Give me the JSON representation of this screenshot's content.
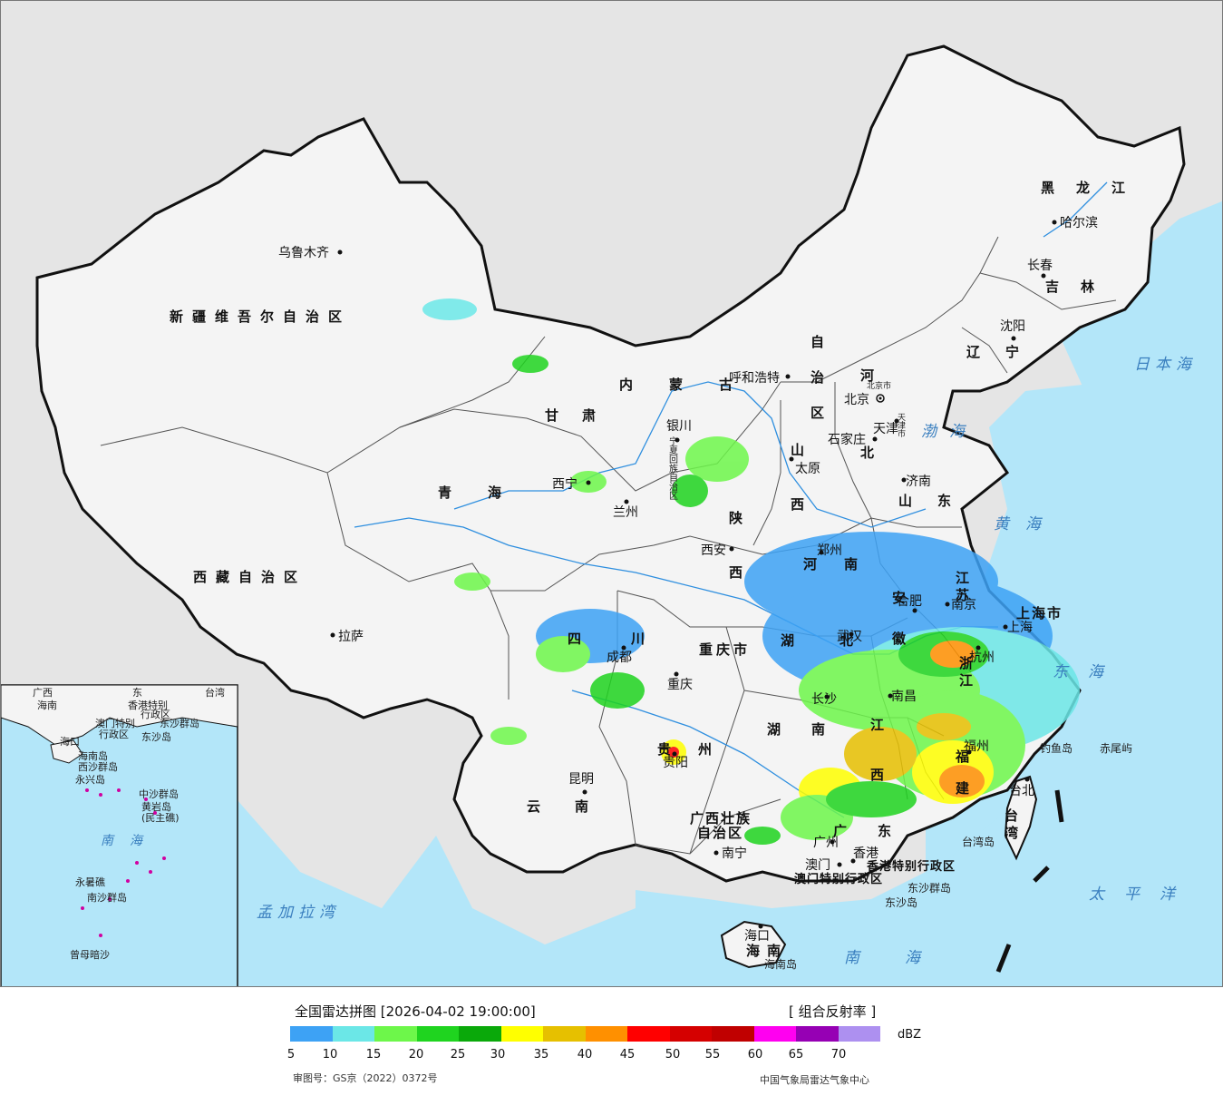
{
  "map": {
    "cities": [
      {
        "name": "乌鲁木齐"
      },
      {
        "name": "拉萨"
      },
      {
        "name": "西宁"
      },
      {
        "name": "兰州"
      },
      {
        "name": "银川"
      },
      {
        "name": "呼和浩特"
      },
      {
        "name": "北京"
      },
      {
        "name": "天津"
      },
      {
        "name": "石家庄"
      },
      {
        "name": "太原"
      },
      {
        "name": "济南"
      },
      {
        "name": "西安"
      },
      {
        "name": "郑州"
      },
      {
        "name": "成都"
      },
      {
        "name": "重庆"
      },
      {
        "name": "贵阳"
      },
      {
        "name": "昆明"
      },
      {
        "name": "南宁"
      },
      {
        "name": "广州"
      },
      {
        "name": "澳门"
      },
      {
        "name": "香港"
      },
      {
        "name": "海口"
      },
      {
        "name": "合肥"
      },
      {
        "name": "南京"
      },
      {
        "name": "上海"
      },
      {
        "name": "杭州"
      },
      {
        "name": "福州"
      },
      {
        "name": "南昌"
      },
      {
        "name": "长沙"
      },
      {
        "name": "武汉"
      },
      {
        "name": "台北"
      },
      {
        "name": "沈阳"
      },
      {
        "name": "长春"
      },
      {
        "name": "哈尔滨"
      }
    ],
    "provinces": [
      {
        "name": "新疆维吾尔自治区"
      },
      {
        "name": "西藏自治区"
      },
      {
        "name": "青海"
      },
      {
        "name": "甘肃"
      },
      {
        "name": "内蒙古"
      },
      {
        "name": "自治区"
      },
      {
        "name": "黑龙江"
      },
      {
        "name": "吉林"
      },
      {
        "name": "辽宁"
      },
      {
        "name": "河北"
      },
      {
        "name": "山西"
      },
      {
        "name": "山东"
      },
      {
        "name": "陕西"
      },
      {
        "name": "河南"
      },
      {
        "name": "四川"
      },
      {
        "name": "重庆市"
      },
      {
        "name": "贵州"
      },
      {
        "name": "云南"
      },
      {
        "name": "广西壮族"
      },
      {
        "name": "自治区"
      },
      {
        "name": "广东"
      },
      {
        "name": "湖南"
      },
      {
        "name": "湖北"
      },
      {
        "name": "江西"
      },
      {
        "name": "安徽"
      },
      {
        "name": "江苏"
      },
      {
        "name": "浙江"
      },
      {
        "name": "福建"
      },
      {
        "name": "上海市"
      },
      {
        "name": "台湾"
      },
      {
        "name": "海南"
      },
      {
        "name": "香港特别行政区"
      },
      {
        "name": "澳门特别行政区"
      },
      {
        "name": "宁夏回族自治区"
      },
      {
        "name": "北京市"
      },
      {
        "name": "天津市"
      }
    ],
    "seas": [
      {
        "name": "日本海"
      },
      {
        "name": "渤海"
      },
      {
        "name": "黄海"
      },
      {
        "name": "东海"
      },
      {
        "name": "太平洋"
      },
      {
        "name": "南海"
      },
      {
        "name": "孟加拉湾"
      }
    ],
    "islands": [
      {
        "name": "钓鱼岛"
      },
      {
        "name": "赤尾屿"
      },
      {
        "name": "台湾岛"
      },
      {
        "name": "东沙群岛"
      },
      {
        "name": "东沙岛"
      },
      {
        "name": "海南岛"
      }
    ],
    "inset": {
      "labels": [
        "广西",
        "海南",
        "东",
        "香港特别",
        "澳门特别",
        "行政区",
        "行政区",
        "台湾",
        "东沙群岛",
        "东沙岛",
        "海口",
        "海南岛",
        "西沙群岛",
        "永兴岛",
        "中沙群岛",
        "黄岩岛",
        "(民主礁)",
        "南海",
        "永暑礁",
        "南沙群岛",
        "曾母暗沙"
      ]
    },
    "colors": {
      "land": "#f4f4f4",
      "ocean": "#b3e6f9",
      "foreign": "#e5e5e5",
      "border": "#111111",
      "river": "#2f8fdf"
    }
  },
  "legend": {
    "title": "全国雷达拼图 [2026-04-02 19:00:00]",
    "product": "[ 组合反射率 ]",
    "unit": "dBZ",
    "colors": [
      "#3da2f5",
      "#6be7e7",
      "#6df74a",
      "#1fd41f",
      "#0aa90a",
      "#ffff00",
      "#e6c000",
      "#ff9000",
      "#ff0000",
      "#d50000",
      "#c00000",
      "#ff00f0",
      "#9600b4",
      "#ad90f0"
    ],
    "ticks": [
      "5",
      "10",
      "15",
      "20",
      "25",
      "30",
      "35",
      "40",
      "45",
      "50",
      "55",
      "60",
      "65",
      "70"
    ],
    "review_number": "审图号：GS京（2022）0372号",
    "organization": "中国气象局雷达气象中心"
  }
}
